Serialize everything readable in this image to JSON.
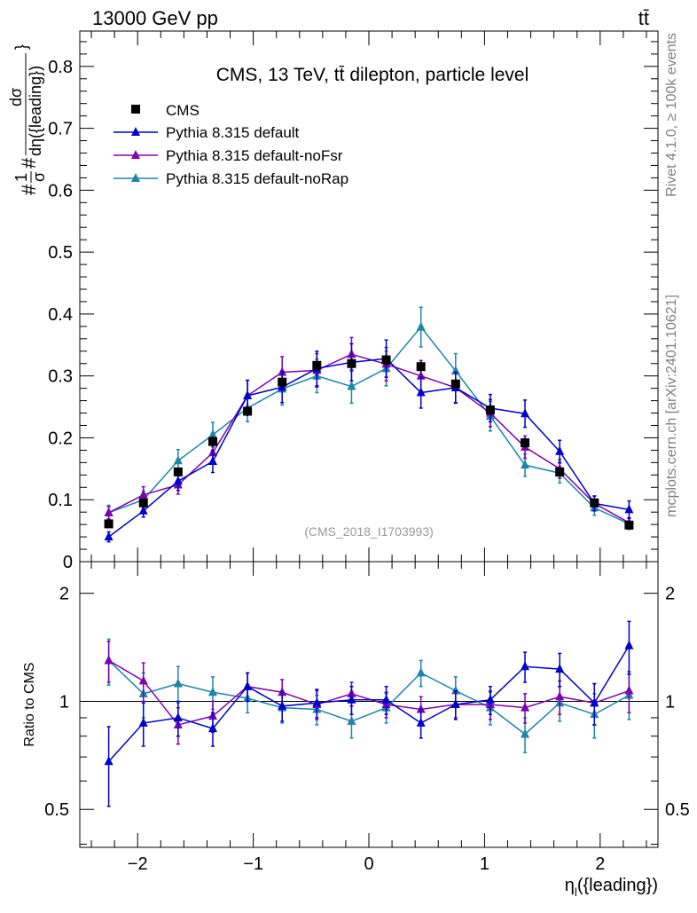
{
  "header": {
    "energy_label": "13000 GeV pp",
    "process_label": "tt̄"
  },
  "side_labels": {
    "rivet": "Rivet 4.1.0, ≥ 100k events",
    "mcplots": "mcplots.cern.ch [arXiv:2401.10621]"
  },
  "chart_data": [
    {
      "type": "line",
      "title": "CMS, 13 TeV, tt̄ dilepton, particle level",
      "watermark": "(CMS_2018_I1703993)",
      "ylabel_parts": [
        "#",
        "1",
        "σ",
        "#",
        "dσ",
        "dη({leading})",
        "}"
      ],
      "xlabel": "η_l({leading})",
      "xlabel_main": "η",
      "xlabel_sub": "l",
      "xlabel_rest": "({leading})",
      "xlim": [
        -2.5,
        2.5
      ],
      "ylim": [
        0,
        0.8571
      ],
      "xticks": [
        -2,
        -1,
        0,
        1,
        2
      ],
      "xtick_labels": [
        "−2",
        "−1",
        "0",
        "1",
        "2"
      ],
      "yticks": [
        0,
        0.1,
        0.2,
        0.3,
        0.4,
        0.5,
        0.6,
        0.7,
        0.8
      ],
      "ytick_labels": [
        "0",
        "0.1",
        "0.2",
        "0.3",
        "0.4",
        "0.5",
        "0.6",
        "0.7",
        "0.8"
      ],
      "x": [
        -2.25,
        -1.95,
        -1.65,
        -1.35,
        -1.05,
        -0.75,
        -0.45,
        -0.15,
        0.15,
        0.45,
        0.75,
        1.05,
        1.35,
        1.65,
        1.95,
        2.25
      ],
      "data": {
        "name": "CMS",
        "color": "#000000",
        "values": [
          0.061,
          0.095,
          0.145,
          0.194,
          0.243,
          0.29,
          0.317,
          0.32,
          0.326,
          0.315,
          0.287,
          0.245,
          0.192,
          0.145,
          0.095,
          0.059
        ],
        "errors": [
          0.005,
          0.006,
          0.007,
          0.008,
          0.008,
          0.009,
          0.009,
          0.009,
          0.009,
          0.009,
          0.008,
          0.008,
          0.008,
          0.007,
          0.006,
          0.005
        ]
      },
      "series": [
        {
          "name": "Pythia 8.315 default",
          "color": "#0000cc",
          "values": [
            0.04,
            0.082,
            0.13,
            0.162,
            0.268,
            0.282,
            0.312,
            0.322,
            0.328,
            0.273,
            0.281,
            0.248,
            0.239,
            0.178,
            0.094,
            0.084
          ],
          "errors": [
            0.008,
            0.01,
            0.015,
            0.018,
            0.025,
            0.025,
            0.028,
            0.03,
            0.03,
            0.025,
            0.025,
            0.022,
            0.022,
            0.018,
            0.012,
            0.014
          ]
        },
        {
          "name": "Pythia 8.315 default-noFsr",
          "color": "#8000b0",
          "values": [
            0.079,
            0.108,
            0.124,
            0.176,
            0.268,
            0.306,
            0.309,
            0.335,
            0.319,
            0.3,
            0.281,
            0.24,
            0.185,
            0.15,
            0.094,
            0.063
          ],
          "errors": [
            0.01,
            0.013,
            0.015,
            0.018,
            0.025,
            0.025,
            0.027,
            0.027,
            0.027,
            0.025,
            0.024,
            0.022,
            0.018,
            0.015,
            0.012,
            0.008
          ]
        },
        {
          "name": "Pythia 8.315 default-noRap",
          "color": "#1a86a8",
          "values": [
            0.079,
            0.1,
            0.163,
            0.205,
            0.248,
            0.279,
            0.3,
            0.283,
            0.312,
            0.379,
            0.308,
            0.235,
            0.156,
            0.143,
            0.087,
            0.061
          ],
          "errors": [
            0.012,
            0.014,
            0.018,
            0.02,
            0.022,
            0.026,
            0.027,
            0.027,
            0.028,
            0.032,
            0.028,
            0.024,
            0.018,
            0.016,
            0.012,
            0.009
          ]
        }
      ]
    },
    {
      "type": "line",
      "ylabel": "Ratio to CMS",
      "yscale": "log",
      "ylim": [
        0.392,
        2.45
      ],
      "yticks": [
        0.5,
        1,
        2
      ],
      "ytick_labels": [
        "0.5",
        "1",
        "2"
      ],
      "reference_line": 1,
      "series": [
        {
          "name": "Pythia 8.315 default",
          "values": [
            0.68,
            0.87,
            0.9,
            0.84,
            1.1,
            0.97,
            0.99,
            1.01,
            1.01,
            0.87,
            0.98,
            1.01,
            1.25,
            1.23,
            0.99,
            1.43
          ],
          "errors": [
            0.17,
            0.12,
            0.1,
            0.09,
            0.1,
            0.09,
            0.09,
            0.09,
            0.09,
            0.08,
            0.09,
            0.09,
            0.12,
            0.13,
            0.13,
            0.24
          ]
        },
        {
          "name": "Pythia 8.315 default-noFsr",
          "values": [
            1.3,
            1.14,
            0.86,
            0.91,
            1.1,
            1.06,
            0.98,
            1.05,
            0.98,
            0.95,
            0.98,
            0.98,
            0.96,
            1.03,
            0.99,
            1.07
          ],
          "errors": [
            0.17,
            0.14,
            0.1,
            0.09,
            0.1,
            0.09,
            0.09,
            0.08,
            0.08,
            0.08,
            0.08,
            0.09,
            0.09,
            0.11,
            0.13,
            0.14
          ]
        },
        {
          "name": "Pythia 8.315 default-noRap",
          "values": [
            1.3,
            1.05,
            1.12,
            1.06,
            1.02,
            0.96,
            0.95,
            0.88,
            0.96,
            1.2,
            1.07,
            0.96,
            0.81,
            0.99,
            0.92,
            1.04
          ],
          "errors": [
            0.19,
            0.15,
            0.13,
            0.11,
            0.09,
            0.09,
            0.09,
            0.09,
            0.09,
            0.1,
            0.1,
            0.1,
            0.09,
            0.11,
            0.13,
            0.15
          ]
        }
      ]
    }
  ]
}
